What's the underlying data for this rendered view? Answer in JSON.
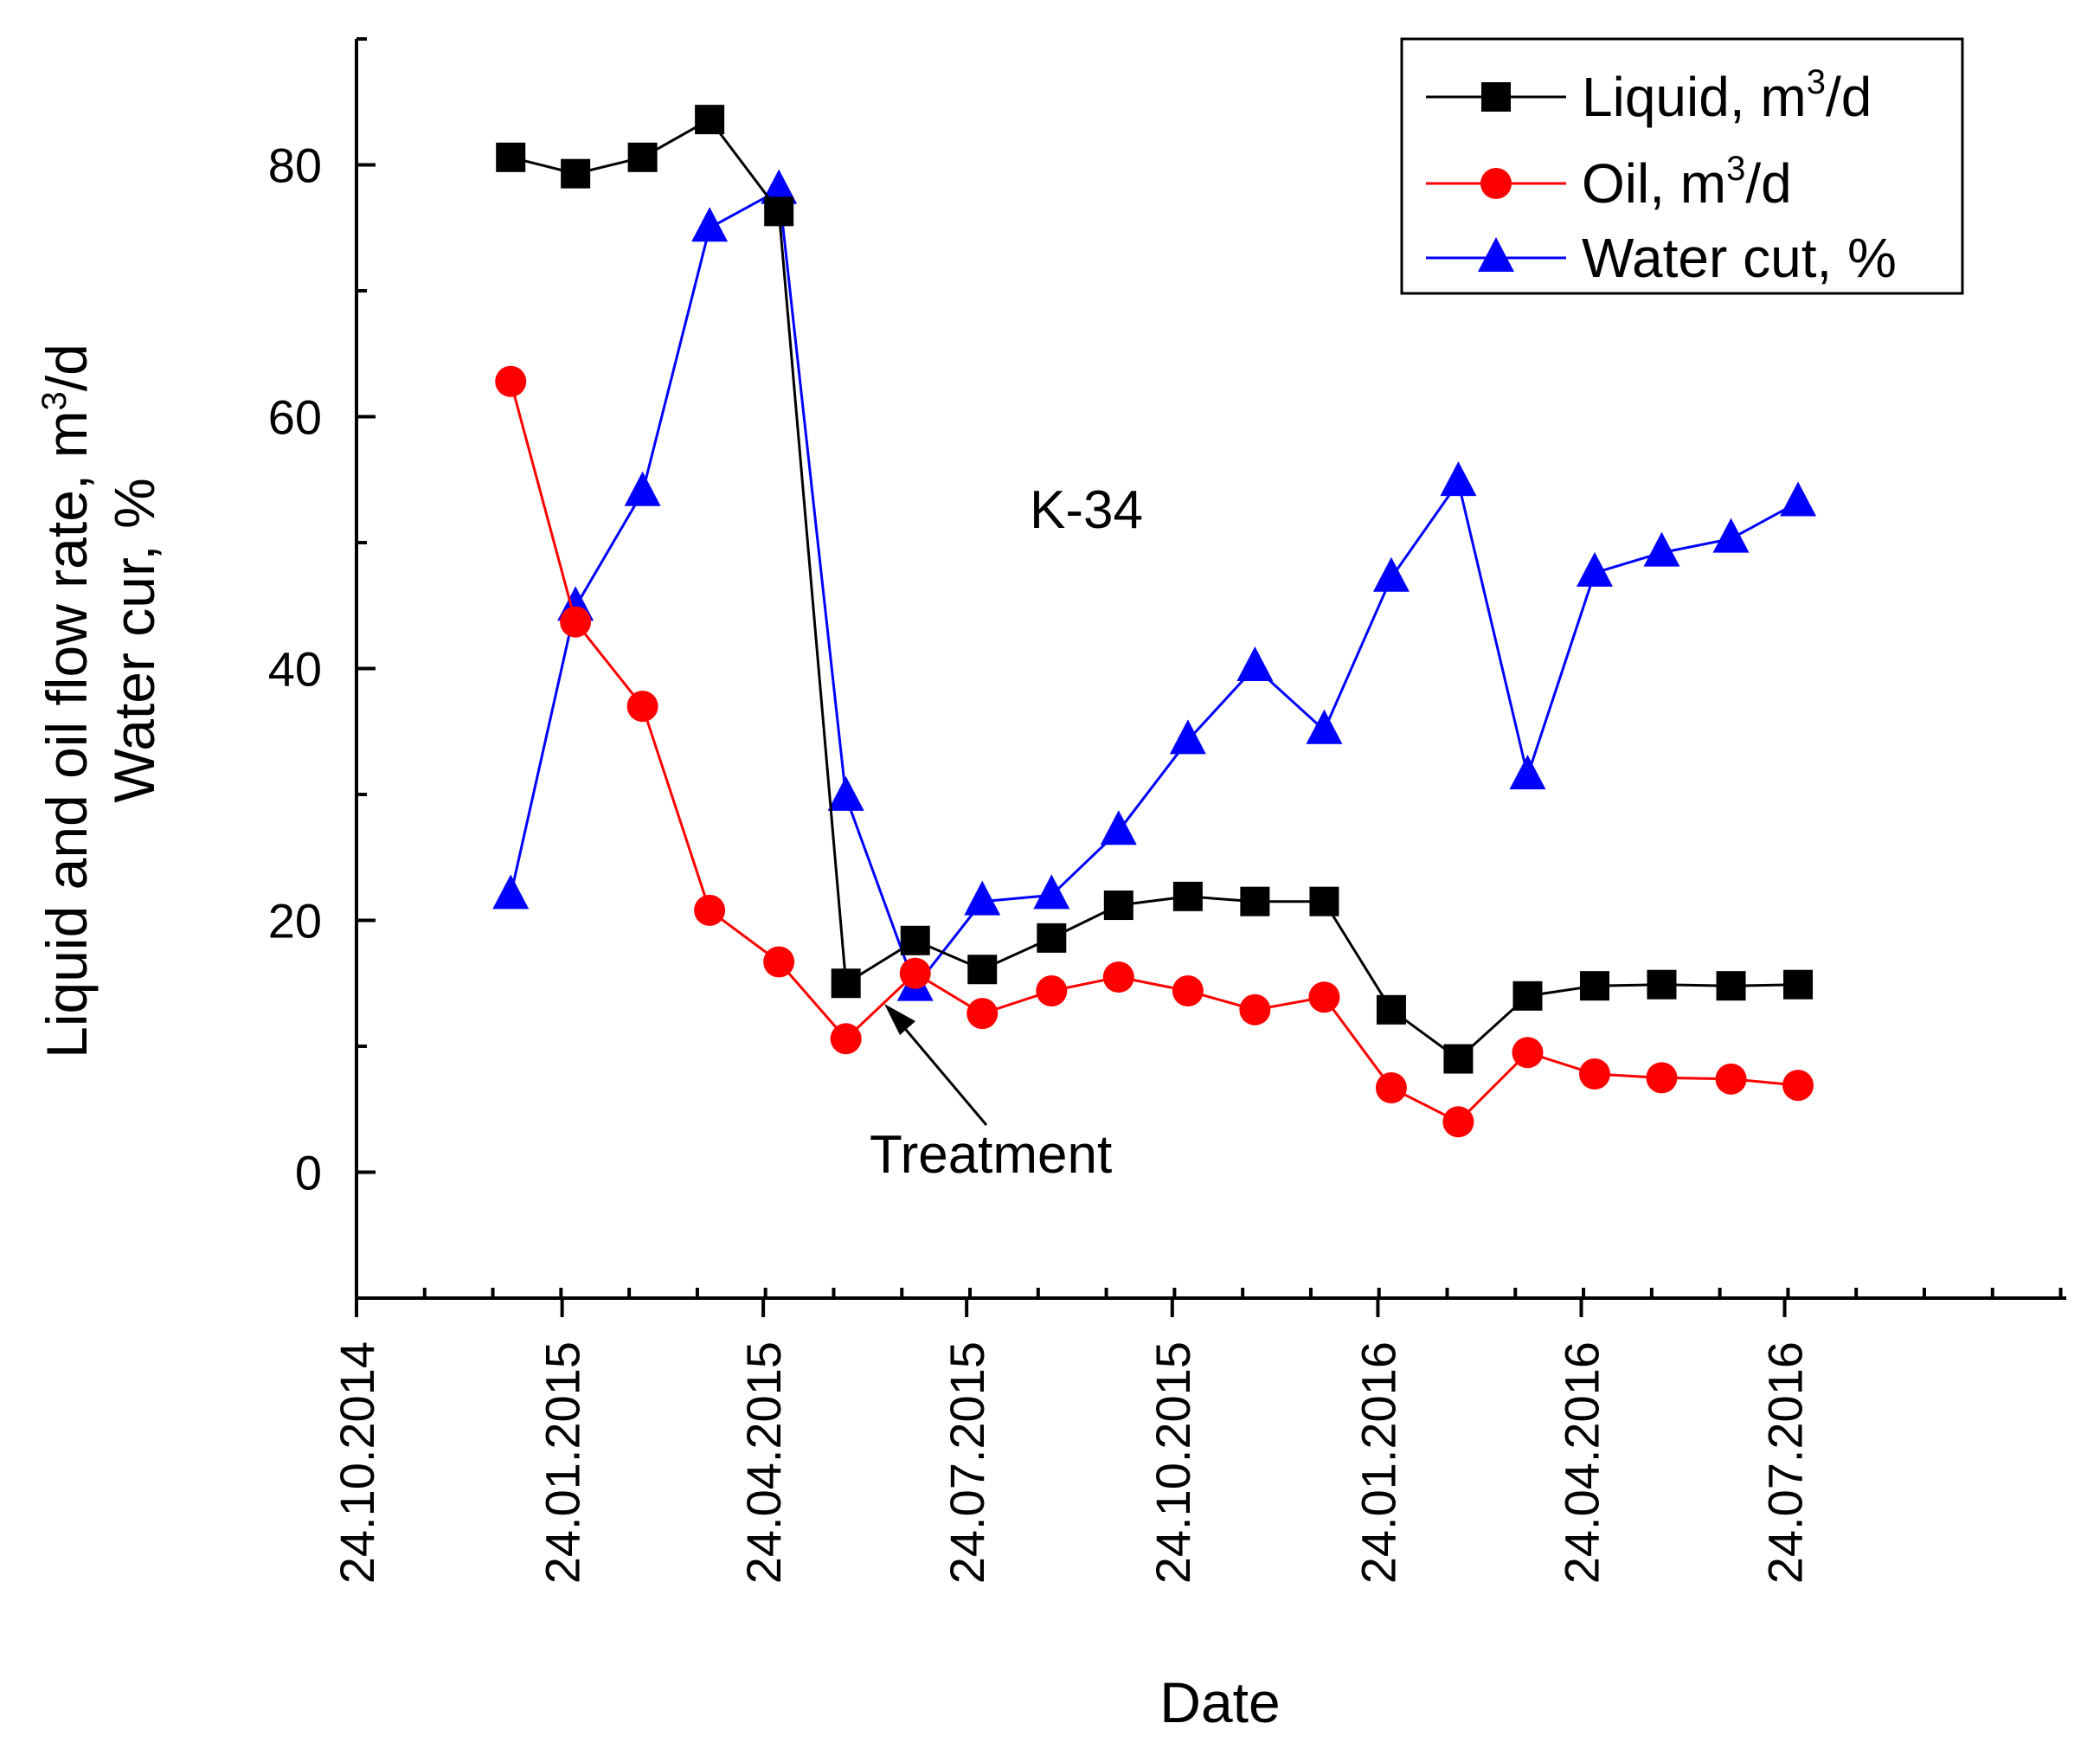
{
  "chart_data": {
    "type": "line",
    "xlabel": "Date",
    "ylabel_line1": "Liquid and oil flow rate, m",
    "ylabel_sup": "3",
    "ylabel_line1_end": "/d",
    "ylabel_line2": "Water cur, %",
    "xlim_days": [
      0,
      765
    ],
    "ylim": [
      -10,
      90
    ],
    "y_ticks": [
      0,
      20,
      40,
      60,
      80
    ],
    "x_tick_labels": [
      "24.10.2014",
      "24.01.2015",
      "24.04.2015",
      "24.07.2015",
      "24.10.2015",
      "24.01.2016",
      "24.04.2016",
      "24.07.2016"
    ],
    "x_tick_days": [
      0,
      92,
      182,
      273,
      365,
      457,
      548,
      639
    ],
    "annotation_label": "K-34",
    "arrow_label": "Treatment",
    "x_days": [
      69,
      98,
      128,
      158,
      189,
      219,
      250,
      280,
      311,
      341,
      372,
      402,
      433,
      463,
      493,
      524,
      554,
      584,
      615,
      645
    ],
    "series": [
      {
        "name": "Liquid",
        "unit_pre": "m",
        "unit_sup": "3",
        "unit_post": "/d",
        "legend_prefix": "Liquid, ",
        "color": "#000000",
        "marker": "square",
        "values": [
          80.6,
          79.3,
          80.6,
          83.6,
          76.3,
          15.0,
          18.4,
          16.1,
          18.6,
          21.2,
          21.9,
          21.5,
          21.5,
          12.9,
          9.0,
          14.0,
          14.8,
          14.9,
          14.8,
          14.9
        ]
      },
      {
        "name": "Oil",
        "legend_prefix": "Oil, ",
        "unit_pre": "m",
        "unit_sup": "3",
        "unit_post": "/d",
        "color": "#ff0000",
        "marker": "circle",
        "values": [
          62.8,
          43.7,
          37.0,
          20.8,
          16.7,
          10.6,
          15.8,
          12.6,
          14.4,
          15.5,
          14.4,
          12.9,
          13.9,
          6.7,
          4.0,
          9.5,
          7.8,
          7.5,
          7.4,
          6.9
        ]
      },
      {
        "name": "Water cut",
        "legend_prefix": "Water cut, %",
        "color": "#0000ff",
        "marker": "triangle",
        "values": [
          22.0,
          44.9,
          54.0,
          75.0,
          78.0,
          29.8,
          14.7,
          21.5,
          22.0,
          27.1,
          34.3,
          40.1,
          35.1,
          47.2,
          54.8,
          31.5,
          47.6,
          49.2,
          50.3,
          53.2
        ]
      }
    ]
  }
}
